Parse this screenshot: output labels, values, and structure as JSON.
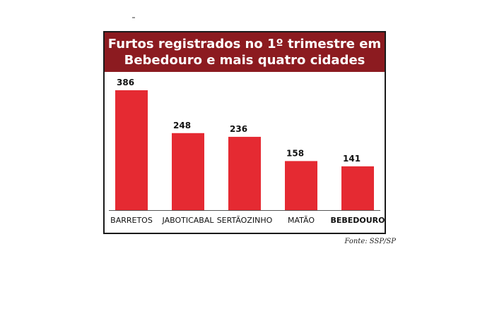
{
  "chart_data": {
    "type": "bar",
    "title_lines": [
      "Furtos registrados no 1º trimestre em",
      "Bebedouro e mais quatro cidades"
    ],
    "categories": [
      "BARRETOS",
      "JABOTICABAL",
      "SERTÃOZINHO",
      "MATÃO",
      "BEBEDOURO"
    ],
    "values": [
      386,
      248,
      236,
      158,
      141
    ],
    "highlight_category": "BEBEDOURO",
    "bar_color": "#e52a32",
    "title_background": "#8c1b20",
    "ylim": [
      0,
      386
    ],
    "grid": false,
    "legend": "none",
    "source": "Fonte: SSP/SP"
  }
}
